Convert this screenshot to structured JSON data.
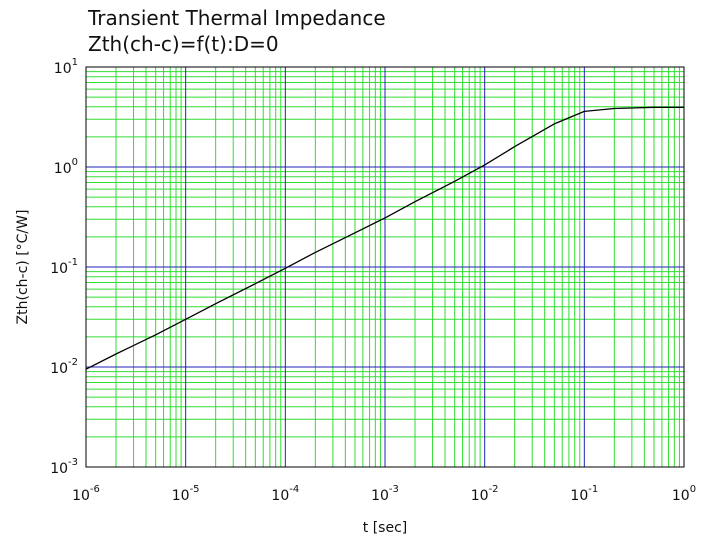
{
  "chart_data": {
    "type": "line",
    "title": "Transient Thermal Impedance",
    "subtitle": "Zth(ch-c)=f(t):D=0",
    "xlabel": "t [sec]",
    "ylabel": "Zth(ch-c) [°C/W]",
    "x_scale": "log",
    "y_scale": "log",
    "xlim": [
      1e-06,
      1
    ],
    "ylim": [
      0.001,
      10
    ],
    "grid": true,
    "colors": {
      "minor_grid": "#33dd33",
      "major_grid": "#2222bb",
      "line": "#000000",
      "frame": "#000000"
    },
    "x_ticks": [
      {
        "base": "10",
        "exp": "-6",
        "value": 1e-06
      },
      {
        "base": "10",
        "exp": "-5",
        "value": 1e-05
      },
      {
        "base": "10",
        "exp": "-4",
        "value": 0.0001
      },
      {
        "base": "10",
        "exp": "-3",
        "value": 0.001
      },
      {
        "base": "10",
        "exp": "-2",
        "value": 0.01
      },
      {
        "base": "10",
        "exp": "-1",
        "value": 0.1
      },
      {
        "base": "10",
        "exp": "0",
        "value": 1
      }
    ],
    "y_ticks": [
      {
        "base": "10",
        "exp": "1",
        "value": 10
      },
      {
        "base": "10",
        "exp": "0",
        "value": 1
      },
      {
        "base": "10",
        "exp": "-1",
        "value": 0.1
      },
      {
        "base": "10",
        "exp": "-2",
        "value": 0.01
      },
      {
        "base": "10",
        "exp": "-3",
        "value": 0.001
      }
    ],
    "series": [
      {
        "x": [
          1e-06,
          2e-06,
          5e-06,
          1e-05,
          2e-05,
          5e-05,
          0.0001,
          0.0002,
          0.0005,
          0.001,
          0.002,
          0.005,
          0.01,
          0.02,
          0.05,
          0.1,
          0.2,
          0.5,
          1
        ],
        "y": [
          0.0095,
          0.0135,
          0.021,
          0.03,
          0.043,
          0.068,
          0.097,
          0.14,
          0.22,
          0.31,
          0.45,
          0.72,
          1.05,
          1.6,
          2.7,
          3.6,
          3.85,
          3.95,
          3.95
        ]
      }
    ]
  }
}
